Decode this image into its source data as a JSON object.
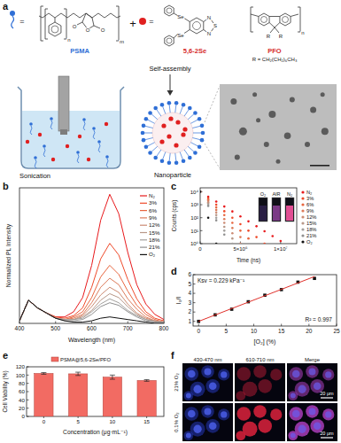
{
  "diagram": {
    "label": "a",
    "texts": {
      "psma": "PSMA",
      "plus": "+",
      "eq1": "=",
      "eq2": "=",
      "se": "5,6-2Se",
      "pfo": "PFO",
      "pfo_r": "R = CH₂(CH₂)₆CH₃",
      "process": "Self-assembly",
      "sonication": "Sonication",
      "nanoparticle": "Nanoparticle"
    },
    "atoms": {
      "psma_o_ring": "O",
      "psma_o_left": "O",
      "psma_o_right": "O",
      "psma_n": "n",
      "psma_m": "m",
      "se_top": "Se",
      "se_bottom": "Se",
      "n_top": "N",
      "s": "S",
      "n_bottom": "N",
      "pfo_r_left": "R",
      "pfo_r_right": "R",
      "pfo_n": "n"
    }
  },
  "chart_data": [
    {
      "title": "b",
      "type": "line",
      "x": [
        400,
        425,
        450,
        475,
        500,
        525,
        550,
        575,
        600,
        625,
        650,
        675,
        700,
        725,
        750,
        775,
        800
      ],
      "series": [
        {
          "name": "N₂",
          "color": "#e8191c",
          "values": [
            0.02,
            0.18,
            0.12,
            0.08,
            0.05,
            0.05,
            0.09,
            0.2,
            0.45,
            0.8,
            1.0,
            0.85,
            0.55,
            0.3,
            0.15,
            0.07,
            0.03
          ]
        },
        {
          "name": "3%",
          "color": "#ef4a2a",
          "values": [
            0.02,
            0.18,
            0.12,
            0.08,
            0.05,
            0.04,
            0.06,
            0.12,
            0.28,
            0.5,
            0.62,
            0.53,
            0.34,
            0.19,
            0.09,
            0.04,
            0.02
          ]
        },
        {
          "name": "6%",
          "color": "#e8663f",
          "values": [
            0.02,
            0.18,
            0.12,
            0.08,
            0.04,
            0.03,
            0.05,
            0.09,
            0.2,
            0.36,
            0.45,
            0.38,
            0.25,
            0.14,
            0.07,
            0.03,
            0.01
          ]
        },
        {
          "name": "9%",
          "color": "#dc7b5a",
          "values": [
            0.02,
            0.18,
            0.12,
            0.08,
            0.04,
            0.03,
            0.04,
            0.07,
            0.16,
            0.28,
            0.35,
            0.3,
            0.19,
            0.11,
            0.05,
            0.02,
            0.01
          ]
        },
        {
          "name": "12%",
          "color": "#cc8b73",
          "values": [
            0.02,
            0.18,
            0.12,
            0.08,
            0.04,
            0.03,
            0.03,
            0.06,
            0.13,
            0.22,
            0.28,
            0.24,
            0.15,
            0.08,
            0.04,
            0.02,
            0.01
          ]
        },
        {
          "name": "15%",
          "color": "#b89889",
          "values": [
            0.02,
            0.18,
            0.12,
            0.08,
            0.04,
            0.03,
            0.03,
            0.05,
            0.1,
            0.18,
            0.23,
            0.2,
            0.13,
            0.07,
            0.03,
            0.02,
            0.01
          ]
        },
        {
          "name": "18%",
          "color": "#a3a09d",
          "values": [
            0.02,
            0.18,
            0.12,
            0.08,
            0.04,
            0.03,
            0.03,
            0.04,
            0.09,
            0.15,
            0.19,
            0.16,
            0.1,
            0.06,
            0.03,
            0.01,
            0.01
          ]
        },
        {
          "name": "21%",
          "color": "#8f8f8f",
          "values": [
            0.02,
            0.18,
            0.12,
            0.08,
            0.04,
            0.02,
            0.02,
            0.03,
            0.07,
            0.13,
            0.16,
            0.14,
            0.09,
            0.05,
            0.02,
            0.01,
            0
          ]
        },
        {
          "name": "O₂",
          "color": "#111111",
          "values": [
            0.02,
            0.18,
            0.12,
            0.08,
            0.04,
            0.02,
            0.01,
            0.01,
            0.02,
            0.04,
            0.05,
            0.04,
            0.03,
            0.02,
            0.01,
            0,
            0
          ]
        }
      ],
      "xlim": [
        400,
        800
      ],
      "xticks": [
        400,
        500,
        600,
        700,
        800
      ],
      "ylim": [
        0,
        1.05
      ],
      "x_label": "Wavelength (nm)",
      "y_label": "Normalized PL Intensity",
      "tick_labels": "x",
      "legend": "upper right"
    },
    {
      "title": "c",
      "type": "scatter",
      "log": "y",
      "x": [
        0,
        1000000,
        2000000,
        3000000,
        4000000,
        5000000,
        6000000,
        7000000,
        8000000,
        9000000,
        10000000
      ],
      "series": [
        {
          "name": "N₂",
          "color": "#e8191c",
          "values": [
            10000,
            4169,
            1738,
            724,
            302,
            126,
            52,
            22,
            9.1,
            3.8,
            1.6
          ]
        },
        {
          "name": "3%",
          "color": "#ef4a2a",
          "values": [
            10000,
            3162,
            1000,
            316,
            100,
            32,
            10,
            3.2,
            1,
            null,
            null
          ]
        },
        {
          "name": "6%",
          "color": "#e8663f",
          "values": [
            10000,
            2512,
            631,
            158,
            40,
            10,
            2.5,
            null,
            null,
            null,
            null
          ]
        },
        {
          "name": "9%",
          "color": "#dc7b5a",
          "values": [
            10000,
            1995,
            398,
            79,
            16,
            3.2,
            null,
            null,
            null,
            null,
            null
          ]
        },
        {
          "name": "12%",
          "color": "#cc8b73",
          "values": [
            10000,
            1585,
            251,
            40,
            6.3,
            1,
            null,
            null,
            null,
            null,
            null
          ]
        },
        {
          "name": "15%",
          "color": "#b89889",
          "values": [
            10000,
            1259,
            158,
            20,
            2.5,
            null,
            null,
            null,
            null,
            null,
            null
          ]
        },
        {
          "name": "18%",
          "color": "#a3a09d",
          "values": [
            10000,
            1000,
            100,
            10,
            1,
            null,
            null,
            null,
            null,
            null,
            null
          ]
        },
        {
          "name": "21%",
          "color": "#8f8f8f",
          "values": [
            10000,
            794,
            63,
            5,
            null,
            null,
            null,
            null,
            null,
            null,
            null
          ]
        },
        {
          "name": "O₂",
          "color": "#111111",
          "values": [
            10000,
            100,
            1,
            null,
            null,
            null,
            null,
            null,
            null,
            null,
            null
          ]
        }
      ],
      "xlim": [
        0,
        12000000
      ],
      "xticks": [
        0,
        {
          "value": 5000000,
          "label": "5×10⁶"
        },
        {
          "value": 10000000,
          "label": "1×10⁷"
        }
      ],
      "ylim": [
        1,
        20000
      ],
      "yticks": [
        {
          "value": 1,
          "label": "10⁰"
        },
        {
          "value": 10,
          "label": "10¹"
        },
        {
          "value": 100,
          "label": "10²"
        },
        {
          "value": 1000,
          "label": "10³"
        },
        {
          "value": 10000,
          "label": "10⁴"
        }
      ],
      "x_label": "Time (ns)",
      "y_label": "Counts (cps)",
      "legend": "right",
      "annotations": [
        "O₂",
        "AIR",
        "N₂"
      ]
    },
    {
      "title": "d",
      "type": "scatter",
      "x": [
        0,
        3,
        6,
        9,
        12,
        15,
        18,
        21
      ],
      "series": [
        {
          "type": "scatter",
          "marker": "square",
          "color": "#111111",
          "values": [
            1,
            1.7,
            2.3,
            3.1,
            3.8,
            4.4,
            5.2,
            5.6
          ]
        },
        {
          "type": "line",
          "color": "#e0312b",
          "x": [
            0,
            21
          ],
          "values": [
            1,
            5.8
          ]
        }
      ],
      "xlim": [
        -1,
        25
      ],
      "xticks": [
        0,
        5,
        10,
        15,
        20,
        25
      ],
      "ylim": [
        0.5,
        6
      ],
      "yticks": [
        1,
        2,
        3,
        4,
        5,
        6
      ],
      "x_label": "[O₂] (%)",
      "y_label": "I₀/I",
      "annotations": [
        "Ksv = 0.229 kPa⁻¹",
        "R² = 0.997"
      ]
    },
    {
      "title": "e",
      "type": "bar",
      "categories": [
        "0",
        "5",
        "10",
        "15"
      ],
      "series": [
        {
          "name": "PSMA@5,6-2Se/PFO",
          "color": "#f26b63",
          "values": [
            104,
            103,
            95,
            87
          ],
          "errors": [
            2,
            4,
            5,
            2
          ]
        }
      ],
      "ylim": [
        0,
        120
      ],
      "yticks": [
        0,
        20,
        40,
        60,
        80,
        100,
        120
      ],
      "x_label": "Concentration (μg·mL⁻¹)",
      "y_label": "Cell Viability (%)",
      "legend": "top"
    }
  ],
  "micrographs": {
    "label": "f",
    "columns": [
      "430-470 nm",
      "610-710 nm",
      "Merge"
    ],
    "rows": [
      "21% O₂",
      "0.1% O₂"
    ],
    "scale_bars": [
      "20 μm",
      "20 μm"
    ]
  }
}
